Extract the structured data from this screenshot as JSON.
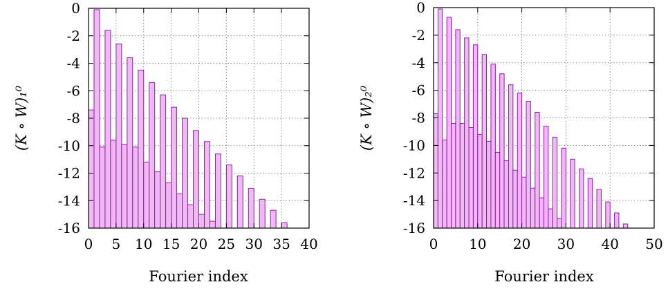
{
  "chart_data": [
    {
      "type": "bar",
      "xlabel": "Fourier index",
      "ylabel": "(K ∘ W)₁⁰",
      "xlim": [
        0,
        40
      ],
      "ylim": [
        -16,
        0
      ],
      "xticks": [
        "0",
        "5",
        "10",
        "15",
        "20",
        "25",
        "30",
        "35",
        "40"
      ],
      "yticks": [
        "0",
        "-2",
        "-4",
        "-6",
        "-8",
        "-10",
        "-12",
        "-14",
        "-16"
      ],
      "grid": true,
      "bar_color": "#f2b8f5",
      "edge_color": "#8e1bb0",
      "x": [
        0,
        1,
        2,
        3,
        4,
        5,
        6,
        7,
        8,
        9,
        10,
        11,
        12,
        13,
        14,
        15,
        16,
        17,
        18,
        19,
        20,
        21,
        22,
        23,
        24,
        25,
        26,
        27,
        28,
        29,
        30,
        31,
        32,
        33,
        34,
        35,
        36
      ],
      "values": [
        -7.4,
        -0.1,
        -10.1,
        -1.6,
        -9.6,
        -2.6,
        -9.9,
        -3.6,
        -10.1,
        -4.5,
        -11.2,
        -5.4,
        -11.9,
        -6.3,
        -12.7,
        -7.2,
        -13.5,
        -8.0,
        -14.3,
        -8.9,
        -15.0,
        -9.7,
        -15.5,
        -10.6,
        -16.0,
        -11.4,
        -16.0,
        -12.2,
        -16.0,
        -13.1,
        -16.0,
        -13.9,
        -16.0,
        -14.7,
        -16.0,
        -15.6,
        -16.0
      ]
    },
    {
      "type": "bar",
      "xlabel": "Fourier index",
      "ylabel": "(K ∘ W)₂⁰",
      "xlim": [
        0,
        50
      ],
      "ylim": [
        -16,
        0
      ],
      "xticks": [
        "0",
        "10",
        "20",
        "30",
        "40",
        "50"
      ],
      "yticks": [
        "0",
        "-2",
        "-4",
        "-6",
        "-8",
        "-10",
        "-12",
        "-14",
        "-16"
      ],
      "grid": true,
      "bar_color": "#f2b8f5",
      "edge_color": "#8e1bb0",
      "x": [
        0,
        1,
        2,
        3,
        4,
        5,
        6,
        7,
        8,
        9,
        10,
        11,
        12,
        13,
        14,
        15,
        16,
        17,
        18,
        19,
        20,
        21,
        22,
        23,
        24,
        25,
        26,
        27,
        28,
        29,
        30,
        31,
        32,
        33,
        34,
        35,
        36,
        37,
        38,
        39,
        40,
        41,
        42,
        43
      ],
      "values": [
        -7.7,
        -0.1,
        -9.6,
        -0.7,
        -8.4,
        -1.6,
        -8.4,
        -2.2,
        -8.7,
        -2.7,
        -9.2,
        -3.4,
        -9.7,
        -4.1,
        -10.5,
        -4.8,
        -11.1,
        -5.6,
        -11.8,
        -6.2,
        -12.3,
        -6.8,
        -13.1,
        -7.6,
        -13.8,
        -8.6,
        -14.6,
        -9.4,
        -15.3,
        -10.2,
        -16.0,
        -11.0,
        -16.0,
        -11.7,
        -16.0,
        -12.4,
        -16.0,
        -13.2,
        -16.0,
        -14.1,
        -16.0,
        -14.9,
        -16.0,
        -15.7
      ]
    }
  ]
}
